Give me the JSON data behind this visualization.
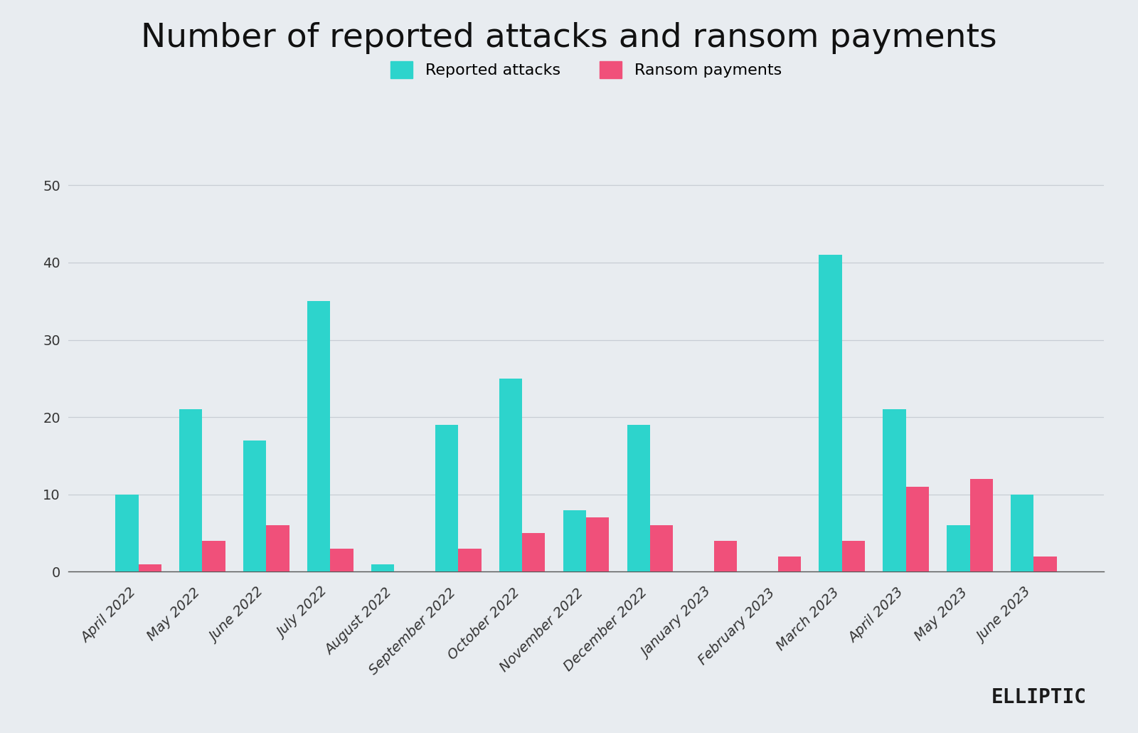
{
  "title": "Number of reported attacks and ransom payments",
  "background_color": "#e8ecf0",
  "categories": [
    "April 2022",
    "May 2022",
    "June 2022",
    "July 2022",
    "August 2022",
    "September 2022",
    "October 2022",
    "November 2022",
    "December 2022",
    "January 2023",
    "February 2023",
    "March 2023",
    "April 2023",
    "May 2023",
    "June 2023"
  ],
  "reported_attacks": [
    10,
    21,
    17,
    35,
    1,
    19,
    25,
    8,
    19,
    0,
    0,
    41,
    21,
    6,
    10
  ],
  "ransom_payments": [
    1,
    4,
    6,
    3,
    0,
    3,
    5,
    7,
    6,
    4,
    2,
    4,
    11,
    12,
    2
  ],
  "attack_color": "#2dd4cc",
  "payment_color": "#f0507a",
  "legend_attack": "Reported attacks",
  "legend_payment": "Ransom payments",
  "ylim": [
    0,
    55
  ],
  "yticks": [
    0,
    10,
    20,
    30,
    40,
    50
  ],
  "title_fontsize": 34,
  "tick_fontsize": 14,
  "legend_fontsize": 16,
  "watermark": "ELLIPTIC",
  "bar_width": 0.36,
  "grid_color": "#c8cdd4",
  "axis_color": "#555555"
}
